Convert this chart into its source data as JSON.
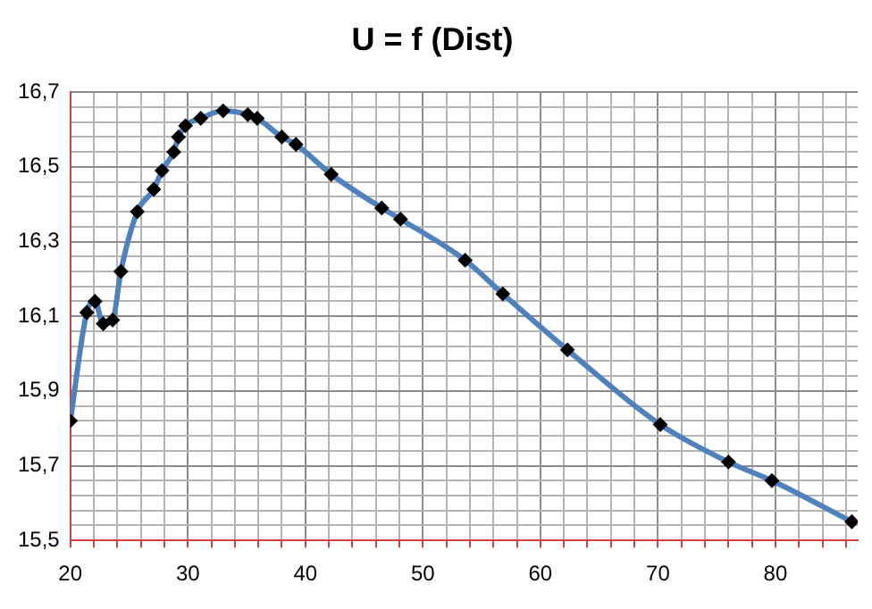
{
  "chart_data": {
    "type": "line",
    "title": "U = f (Dist)",
    "series": [
      {
        "color": "#4f81bd",
        "x": [
          20,
          21.4,
          22.1,
          22.8,
          23.6,
          24.3,
          25.7,
          27.1,
          27.8,
          28.8,
          29.2,
          29.8,
          31.1,
          33.0,
          35.1,
          35.9,
          38.0,
          39.2,
          42.2,
          46.5,
          48.1,
          53.6,
          56.8,
          62.3,
          70.2,
          76.0,
          79.7,
          86.5
        ],
        "values": [
          15.82,
          16.11,
          16.14,
          16.08,
          16.09,
          16.22,
          16.38,
          16.44,
          16.49,
          16.54,
          16.58,
          16.61,
          16.63,
          16.65,
          16.64,
          16.63,
          16.58,
          16.56,
          16.48,
          16.39,
          16.36,
          16.25,
          16.16,
          16.01,
          15.81,
          15.71,
          15.66,
          15.55
        ]
      }
    ],
    "marker": "diamond",
    "grid": true,
    "legend": false,
    "xlim": [
      20,
      87
    ],
    "xticks": [
      20,
      {
        "value": 22,
        "label": null
      },
      {
        "value": 24,
        "label": null
      },
      {
        "value": 26,
        "label": null
      },
      {
        "value": 28,
        "label": null
      },
      30,
      {
        "value": 32,
        "label": null
      },
      {
        "value": 34,
        "label": null
      },
      {
        "value": 36,
        "label": null
      },
      {
        "value": 38,
        "label": null
      },
      40,
      {
        "value": 42,
        "label": null
      },
      {
        "value": 44,
        "label": null
      },
      {
        "value": 46,
        "label": null
      },
      {
        "value": 48,
        "label": null
      },
      50,
      {
        "value": 52,
        "label": null
      },
      {
        "value": 54,
        "label": null
      },
      {
        "value": 56,
        "label": null
      },
      {
        "value": 58,
        "label": null
      },
      60,
      {
        "value": 62,
        "label": null
      },
      {
        "value": 64,
        "label": null
      },
      {
        "value": 66,
        "label": null
      },
      {
        "value": 68,
        "label": null
      },
      70,
      {
        "value": 72,
        "label": null
      },
      {
        "value": 74,
        "label": null
      },
      {
        "value": 76,
        "label": null
      },
      {
        "value": 78,
        "label": null
      },
      80,
      {
        "value": 82,
        "label": null
      },
      {
        "value": 84,
        "label": null
      },
      {
        "value": 86,
        "label": null
      }
    ],
    "ylim": [
      15.5,
      16.7
    ],
    "yticks": [
      {
        "value": 15.5,
        "label": "15,5"
      },
      {
        "value": 15.54,
        "label": null
      },
      {
        "value": 15.58,
        "label": null
      },
      {
        "value": 15.62,
        "label": null
      },
      {
        "value": 15.66,
        "label": null
      },
      {
        "value": 15.7,
        "label": "15,7"
      },
      {
        "value": 15.74,
        "label": null
      },
      {
        "value": 15.78,
        "label": null
      },
      {
        "value": 15.82,
        "label": null
      },
      {
        "value": 15.86,
        "label": null
      },
      {
        "value": 15.9,
        "label": "15,9"
      },
      {
        "value": 15.94,
        "label": null
      },
      {
        "value": 15.98,
        "label": null
      },
      {
        "value": 16.02,
        "label": null
      },
      {
        "value": 16.06,
        "label": null
      },
      {
        "value": 16.1,
        "label": "16,1"
      },
      {
        "value": 16.14,
        "label": null
      },
      {
        "value": 16.18,
        "label": null
      },
      {
        "value": 16.22,
        "label": null
      },
      {
        "value": 16.26,
        "label": null
      },
      {
        "value": 16.3,
        "label": "16,3"
      },
      {
        "value": 16.34,
        "label": null
      },
      {
        "value": 16.38,
        "label": null
      },
      {
        "value": 16.42,
        "label": null
      },
      {
        "value": 16.46,
        "label": null
      },
      {
        "value": 16.5,
        "label": "16,5"
      },
      {
        "value": 16.54,
        "label": null
      },
      {
        "value": 16.58,
        "label": null
      },
      {
        "value": 16.62,
        "label": null
      },
      {
        "value": 16.66,
        "label": null
      },
      {
        "value": 16.7,
        "label": "16,7"
      }
    ]
  }
}
